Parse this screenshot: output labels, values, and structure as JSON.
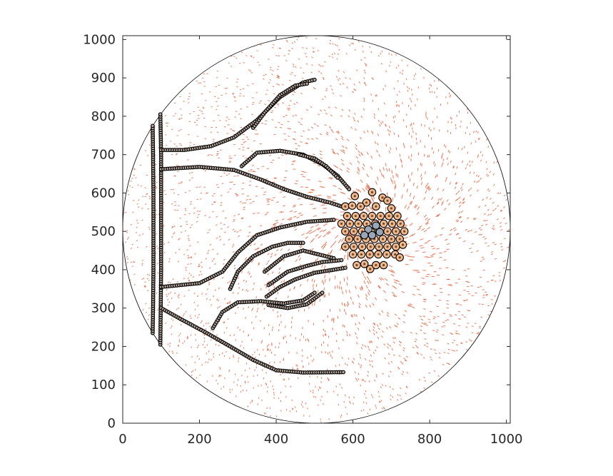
{
  "chart_data": {
    "type": "scatter",
    "title": "",
    "xlabel": "",
    "ylabel": "",
    "xlim": [
      0,
      1010
    ],
    "ylim": [
      0,
      1010
    ],
    "x_ticks": [
      0,
      200,
      400,
      600,
      800,
      1000
    ],
    "y_ticks": [
      0,
      100,
      200,
      300,
      400,
      500,
      600,
      700,
      800,
      900,
      1000
    ],
    "grid": false,
    "boundary_circle": {
      "center": [
        505,
        505
      ],
      "radius": 505
    },
    "colors": {
      "strand_marker": "#000000",
      "strand_fill": "#b8a79a",
      "cluster_fill": "#f2b98a",
      "cluster_core": "#9aa6b6",
      "field": "#e34a1b",
      "axes": "#262626"
    },
    "strands": [
      {
        "name": "",
        "points": [
          [
            78,
            235
          ],
          [
            79,
            300
          ],
          [
            80,
            400
          ],
          [
            80,
            500
          ],
          [
            80,
            600
          ],
          [
            79,
            700
          ],
          [
            78,
            775
          ]
        ]
      },
      {
        "name": "",
        "points": [
          [
            98,
            205
          ],
          [
            99,
            300
          ],
          [
            100,
            400
          ],
          [
            100,
            500
          ],
          [
            100,
            600
          ],
          [
            100,
            700
          ],
          [
            98,
            805
          ]
        ]
      },
      {
        "name": "",
        "points": [
          [
            100,
            712
          ],
          [
            160,
            712
          ],
          [
            230,
            722
          ],
          [
            290,
            745
          ],
          [
            350,
            790
          ],
          [
            410,
            850
          ],
          [
            470,
            888
          ],
          [
            500,
            895
          ]
        ]
      },
      {
        "name": "",
        "points": [
          [
            340,
            770
          ],
          [
            370,
            810
          ],
          [
            410,
            855
          ],
          [
            450,
            880
          ],
          [
            480,
            885
          ]
        ]
      },
      {
        "name": "",
        "points": [
          [
            100,
            662
          ],
          [
            200,
            668
          ],
          [
            290,
            660
          ],
          [
            360,
            635
          ],
          [
            420,
            610
          ],
          [
            480,
            590
          ],
          [
            540,
            575
          ],
          [
            570,
            565
          ]
        ]
      },
      {
        "name": "",
        "points": [
          [
            310,
            670
          ],
          [
            350,
            705
          ],
          [
            410,
            710
          ],
          [
            470,
            700
          ],
          [
            520,
            675
          ],
          [
            560,
            645
          ],
          [
            590,
            610
          ]
        ]
      },
      {
        "name": "",
        "points": [
          [
            460,
            700
          ],
          [
            500,
            690
          ],
          [
            530,
            670
          ],
          [
            560,
            640
          ]
        ]
      },
      {
        "name": "",
        "points": [
          [
            100,
            355
          ],
          [
            200,
            365
          ],
          [
            260,
            395
          ],
          [
            300,
            445
          ],
          [
            350,
            490
          ],
          [
            410,
            510
          ],
          [
            480,
            525
          ],
          [
            550,
            530
          ]
        ]
      },
      {
        "name": "",
        "points": [
          [
            280,
            350
          ],
          [
            300,
            395
          ],
          [
            340,
            435
          ],
          [
            390,
            460
          ],
          [
            430,
            470
          ],
          [
            470,
            470
          ]
        ]
      },
      {
        "name": "",
        "points": [
          [
            370,
            395
          ],
          [
            420,
            435
          ],
          [
            470,
            450
          ],
          [
            510,
            440
          ],
          [
            550,
            430
          ]
        ]
      },
      {
        "name": "",
        "points": [
          [
            375,
            330
          ],
          [
            410,
            355
          ],
          [
            450,
            375
          ],
          [
            500,
            392
          ],
          [
            550,
            400
          ],
          [
            580,
            405
          ]
        ]
      },
      {
        "name": "",
        "points": [
          [
            380,
            360
          ],
          [
            430,
            395
          ],
          [
            480,
            410
          ],
          [
            520,
            420
          ],
          [
            570,
            425
          ]
        ]
      },
      {
        "name": "",
        "points": [
          [
            100,
            300
          ],
          [
            150,
            272
          ],
          [
            210,
            240
          ],
          [
            280,
            200
          ],
          [
            340,
            165
          ],
          [
            400,
            138
          ],
          [
            470,
            132
          ],
          [
            575,
            133
          ]
        ]
      },
      {
        "name": "",
        "points": [
          [
            235,
            248
          ],
          [
            260,
            290
          ],
          [
            300,
            315
          ],
          [
            360,
            318
          ],
          [
            420,
            312
          ],
          [
            470,
            320
          ],
          [
            500,
            340
          ]
        ]
      },
      {
        "name": "",
        "points": [
          [
            380,
            308
          ],
          [
            430,
            300
          ],
          [
            480,
            310
          ],
          [
            520,
            340
          ]
        ]
      }
    ],
    "cluster": {
      "center": [
        640,
        505
      ],
      "points": [
        [
          605,
          592
        ],
        [
          650,
          602
        ],
        [
          677,
          588
        ],
        [
          690,
          580
        ],
        [
          635,
          575
        ],
        [
          580,
          565
        ],
        [
          598,
          567
        ],
        [
          620,
          565
        ],
        [
          660,
          565
        ],
        [
          700,
          560
        ],
        [
          585,
          540
        ],
        [
          607,
          540
        ],
        [
          628,
          540
        ],
        [
          650,
          540
        ],
        [
          672,
          540
        ],
        [
          694,
          540
        ],
        [
          716,
          540
        ],
        [
          570,
          520
        ],
        [
          592,
          520
        ],
        [
          614,
          520
        ],
        [
          636,
          520
        ],
        [
          658,
          520
        ],
        [
          680,
          520
        ],
        [
          702,
          520
        ],
        [
          724,
          520
        ],
        [
          580,
          500
        ],
        [
          602,
          500
        ],
        [
          624,
          500
        ],
        [
          646,
          500
        ],
        [
          668,
          500
        ],
        [
          690,
          500
        ],
        [
          712,
          500
        ],
        [
          734,
          500
        ],
        [
          590,
          480
        ],
        [
          612,
          480
        ],
        [
          634,
          480
        ],
        [
          656,
          480
        ],
        [
          678,
          480
        ],
        [
          700,
          480
        ],
        [
          722,
          480
        ],
        [
          580,
          460
        ],
        [
          602,
          460
        ],
        [
          624,
          460
        ],
        [
          646,
          460
        ],
        [
          668,
          460
        ],
        [
          690,
          460
        ],
        [
          712,
          460
        ],
        [
          730,
          465
        ],
        [
          600,
          440
        ],
        [
          622,
          440
        ],
        [
          644,
          440
        ],
        [
          666,
          440
        ],
        [
          688,
          440
        ],
        [
          710,
          440
        ],
        [
          722,
          432
        ],
        [
          610,
          412
        ],
        [
          630,
          415
        ],
        [
          645,
          402
        ],
        [
          660,
          412
        ],
        [
          680,
          412
        ]
      ],
      "core_points": [
        [
          640,
          505
        ],
        [
          660,
          515
        ],
        [
          650,
          490
        ],
        [
          670,
          498
        ],
        [
          630,
          490
        ]
      ]
    }
  }
}
